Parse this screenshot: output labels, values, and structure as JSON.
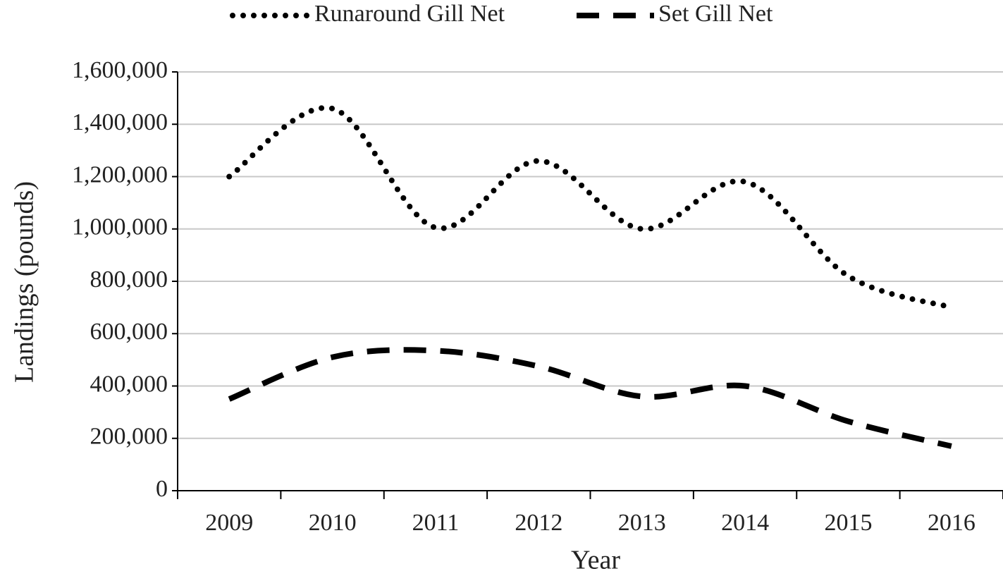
{
  "chart_data": {
    "type": "line",
    "categories": [
      "2009",
      "2010",
      "2011",
      "2012",
      "2013",
      "2014",
      "2015",
      "2016"
    ],
    "series": [
      {
        "name": "Runaround Gill Net",
        "color": "#000000",
        "line_style": "dotted",
        "values": [
          1200000,
          1460000,
          1005000,
          1260000,
          1000000,
          1180000,
          820000,
          700000
        ]
      },
      {
        "name": "Set Gill Net",
        "color": "#000000",
        "line_style": "dashed",
        "values": [
          350000,
          510000,
          535000,
          475000,
          360000,
          400000,
          265000,
          170000
        ]
      }
    ],
    "x_label": "Year",
    "y_label": "Landings  (pounds)",
    "ylim": [
      0,
      1600000
    ],
    "yticks": [
      0,
      {
        "value": 200000,
        "label": "200,000"
      },
      {
        "value": 400000,
        "label": "400,000"
      },
      {
        "value": 600000,
        "label": "600,000"
      },
      {
        "value": 800000,
        "label": "800,000"
      },
      {
        "value": 1000000,
        "label": "1,000,000"
      },
      {
        "value": 1200000,
        "label": "1,200,000"
      },
      {
        "value": 1400000,
        "label": "1,400,000"
      },
      {
        "value": 1600000,
        "label": "1,600,000"
      }
    ],
    "grid": true,
    "legend": "top"
  }
}
